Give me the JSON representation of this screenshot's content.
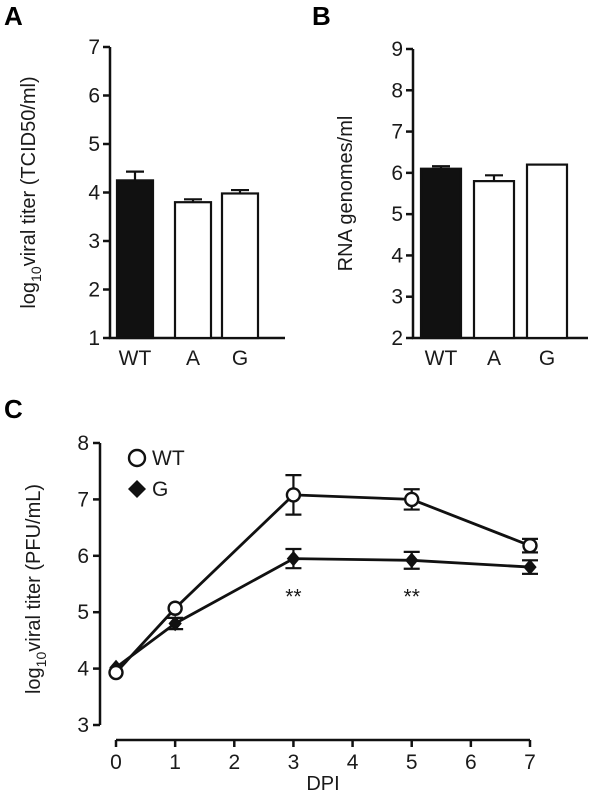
{
  "chart_data": [
    {
      "panel": "A",
      "type": "bar",
      "categories": [
        "WT",
        "A",
        "G"
      ],
      "values": [
        4.25,
        3.8,
        3.98
      ],
      "errors": [
        0.18,
        0.06,
        0.07
      ],
      "fills": [
        "#111111",
        "#ffffff",
        "#ffffff"
      ],
      "ylabel_prefix": "log",
      "ylabel_sub": "10",
      "ylabel_rest": "viral titer (TCID50/ml)",
      "ylim": [
        1,
        7
      ],
      "yticks": [
        "1",
        "2",
        "3",
        "4",
        "5",
        "6",
        "7"
      ]
    },
    {
      "panel": "B",
      "type": "bar",
      "categories": [
        "WT",
        "A",
        "G"
      ],
      "values": [
        6.1,
        5.8,
        6.2
      ],
      "errors": [
        0.06,
        0.14,
        0.0
      ],
      "fills": [
        "#111111",
        "#ffffff",
        "#ffffff"
      ],
      "ylabel": "RNA genomes/ml",
      "ylim": [
        2,
        9
      ],
      "yticks": [
        "2",
        "3",
        "4",
        "5",
        "6",
        "7",
        "8",
        "9"
      ]
    },
    {
      "panel": "C",
      "type": "line",
      "xlabel": "DPI",
      "ylabel_prefix": "log",
      "ylabel_sub": "10",
      "ylabel_rest": "viral titer (PFU/mL)",
      "xlim": [
        0,
        7
      ],
      "ylim": [
        3,
        8
      ],
      "xticks": [
        "0",
        "1",
        "2",
        "3",
        "4",
        "5",
        "6",
        "7"
      ],
      "yticks": [
        "3",
        "4",
        "5",
        "6",
        "7",
        "8"
      ],
      "series": [
        {
          "name": "WT",
          "marker": "circle",
          "x": [
            0,
            1,
            3,
            5,
            7
          ],
          "y": [
            3.93,
            5.07,
            7.08,
            7.0,
            6.18
          ],
          "err": [
            0.05,
            0.05,
            0.35,
            0.18,
            0.12
          ]
        },
        {
          "name": "G",
          "marker": "diamond",
          "x": [
            0,
            1,
            3,
            5,
            7
          ],
          "y": [
            4.02,
            4.8,
            5.95,
            5.92,
            5.8
          ],
          "err": [
            0.05,
            0.1,
            0.17,
            0.15,
            0.12
          ]
        }
      ],
      "annotations": [
        {
          "x": 3,
          "text": "**"
        },
        {
          "x": 5,
          "text": "**"
        }
      ]
    }
  ]
}
